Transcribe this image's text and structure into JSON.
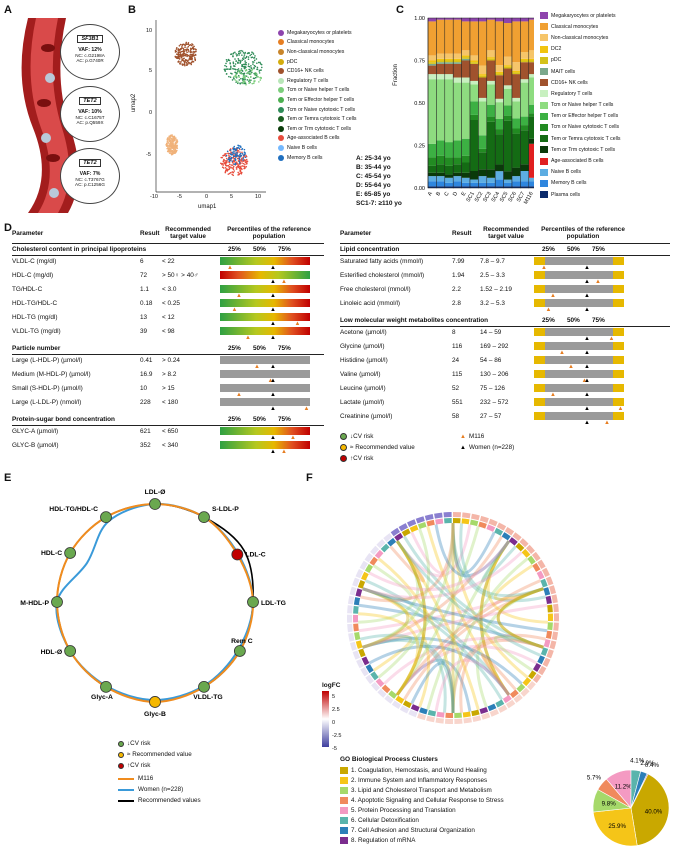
{
  "panels": {
    "A": "A",
    "B": "B",
    "C": "C",
    "D": "D",
    "E": "E",
    "F": "F"
  },
  "panel_a": {
    "variants": [
      {
        "gene": "SF3B1",
        "vaf": "VAF: 12%",
        "nc": "NC: c.G2198A",
        "ac": "AC: p.G740R"
      },
      {
        "gene": "TET2",
        "vaf": "VAF: 10%",
        "nc": "NC: c.C1675T",
        "ac": "AC: p.Q559X"
      },
      {
        "gene": "TET2",
        "vaf": "VAF: 7%",
        "nc": "NC: c.T3767G",
        "ac": "AC: p.C1256G"
      }
    ]
  },
  "panel_b": {
    "xlabel": "umap1",
    "ylabel": "umap2",
    "xticks": [
      "-10",
      "-5",
      "0",
      "5",
      "10"
    ],
    "yticks": [
      "10",
      "5",
      "0",
      "-5"
    ],
    "legend": [
      {
        "label": "Megakaryocytes or platelets",
        "color": "#8e44ad"
      },
      {
        "label": "Classical monocytes",
        "color": "#e67e22"
      },
      {
        "label": "Non-classical monocytes",
        "color": "#c8852a"
      },
      {
        "label": "pDC",
        "color": "#d4ac0d"
      },
      {
        "label": "CD16+ NK cells",
        "color": "#a0522d"
      },
      {
        "label": "Regulatory T cells",
        "color": "#b8e6b8"
      },
      {
        "label": "Tcm or Naive helper T cells",
        "color": "#7ccd7c"
      },
      {
        "label": "Tem or Effector helper T cells",
        "color": "#4caf50"
      },
      {
        "label": "Tcm or Naive cytotoxic T cells",
        "color": "#2e8b57"
      },
      {
        "label": "Tem or Temra cytotoxic T cells",
        "color": "#1b5e20"
      },
      {
        "label": "Tem or Trm cytotoxic T cells",
        "color": "#0b3d0b"
      },
      {
        "label": "Age-associated B cells",
        "color": "#e74c3c"
      },
      {
        "label": "Naive B cells",
        "color": "#74b9ff"
      },
      {
        "label": "Memory B cells",
        "color": "#1f6fbf"
      }
    ]
  },
  "panel_c": {
    "ylabel": "Fraction",
    "yticks": [
      "1.00",
      "0.75",
      "0.50",
      "0.25",
      "0.00"
    ],
    "xlabels": [
      "A",
      "B",
      "C",
      "D",
      "E",
      "SC1",
      "SC2",
      "SC3",
      "SC4",
      "SC5",
      "SC6",
      "SC7",
      "M116"
    ],
    "legend": [
      {
        "label": "Megakaryocytes or platelets",
        "color": "#8e44ad"
      },
      {
        "label": "Classical monocytes",
        "color": "#f0a032"
      },
      {
        "label": "Non-classical monocytes",
        "color": "#f6c56a"
      },
      {
        "label": "DC2",
        "color": "#f1c40f"
      },
      {
        "label": "pDC",
        "color": "#d4c21a"
      },
      {
        "label": "MAIT cells",
        "color": "#7aa88c"
      },
      {
        "label": "CD16+ NK cells",
        "color": "#a0522d"
      },
      {
        "label": "Regulatory T cells",
        "color": "#c8f0c0"
      },
      {
        "label": "Tcm or Naive helper T cells",
        "color": "#8edc80"
      },
      {
        "label": "Tem or Effector helper T cells",
        "color": "#3cb043"
      },
      {
        "label": "Tcm or Naive cytotoxic T cells",
        "color": "#228b22"
      },
      {
        "label": "Tem or Temra cytotoxic T cells",
        "color": "#146b14"
      },
      {
        "label": "Tem or Trm cytotoxic T cells",
        "color": "#0a3a0a"
      },
      {
        "label": "Age-associated B cells",
        "color": "#e02020"
      },
      {
        "label": "Naive B cells",
        "color": "#5dade2"
      },
      {
        "label": "Memory B cells",
        "color": "#2e86de"
      },
      {
        "label": "Plasma cells",
        "color": "#0b2a6b"
      }
    ],
    "ages": [
      "A: 25-34 yo",
      "B: 35-44 yo",
      "C: 45-54 yo",
      "D: 55-64 yo",
      "E: 65-85 yo",
      "SC1-7: ≥110 yo"
    ]
  },
  "chart_data": {
    "type": "bar",
    "ylabel": "Fraction",
    "ylim": [
      0,
      1
    ],
    "categories": [
      "A",
      "B",
      "C",
      "D",
      "E",
      "SC1",
      "SC2",
      "SC3",
      "SC4",
      "SC5",
      "SC6",
      "SC7",
      "M116"
    ],
    "series": [
      {
        "name": "Plasma cells",
        "values": [
          0.01,
          0.01,
          0.01,
          0.01,
          0.01,
          0.01,
          0.01,
          0.01,
          0.01,
          0.01,
          0.01,
          0.01,
          0.01
        ]
      },
      {
        "name": "Memory B cells",
        "values": [
          0.03,
          0.03,
          0.02,
          0.03,
          0.02,
          0.02,
          0.02,
          0.02,
          0.04,
          0.02,
          0.03,
          0.03,
          0.03
        ]
      },
      {
        "name": "Naive B cells",
        "values": [
          0.03,
          0.03,
          0.03,
          0.03,
          0.03,
          0.02,
          0.04,
          0.03,
          0.05,
          0.02,
          0.03,
          0.06,
          0.02
        ]
      },
      {
        "name": "Age-associated B cells",
        "values": [
          0,
          0,
          0,
          0,
          0,
          0,
          0,
          0,
          0,
          0,
          0,
          0,
          0.2
        ]
      },
      {
        "name": "Tem or Trm cytotoxic T cells",
        "values": [
          0.02,
          0.02,
          0.02,
          0.02,
          0.03,
          0.05,
          0.04,
          0.05,
          0.04,
          0.05,
          0.05,
          0.04,
          0.03
        ]
      },
      {
        "name": "Tem or Temra cytotoxic T cells",
        "values": [
          0.04,
          0.05,
          0.05,
          0.05,
          0.06,
          0.3,
          0.1,
          0.28,
          0.18,
          0.3,
          0.2,
          0.2,
          0.13
        ]
      },
      {
        "name": "Tcm or Naive cytotoxic T cells",
        "values": [
          0.05,
          0.05,
          0.05,
          0.04,
          0.04,
          0.03,
          0.02,
          0.03,
          0.03,
          0.03,
          0.03,
          0.03,
          0.02
        ]
      },
      {
        "name": "Tem or Effector helper T cells",
        "values": [
          0.08,
          0.09,
          0.09,
          0.1,
          0.1,
          0.08,
          0.08,
          0.07,
          0.06,
          0.06,
          0.06,
          0.05,
          0.05
        ]
      },
      {
        "name": "Tcm or Naive helper T cells",
        "values": [
          0.38,
          0.36,
          0.37,
          0.34,
          0.33,
          0.1,
          0.2,
          0.12,
          0.1,
          0.1,
          0.1,
          0.2,
          0.16
        ]
      },
      {
        "name": "Regulatory T cells",
        "values": [
          0.03,
          0.03,
          0.03,
          0.03,
          0.03,
          0.02,
          0.02,
          0.02,
          0.02,
          0.02,
          0.02,
          0.02,
          0.02
        ]
      },
      {
        "name": "CD16+ NK cells",
        "values": [
          0.05,
          0.06,
          0.06,
          0.08,
          0.1,
          0.1,
          0.12,
          0.12,
          0.14,
          0.1,
          0.14,
          0.1,
          0.07
        ]
      },
      {
        "name": "MAIT cells",
        "values": [
          0.01,
          0.01,
          0.01,
          0.01,
          0.01,
          0,
          0,
          0,
          0,
          0,
          0,
          0,
          0
        ]
      },
      {
        "name": "pDC",
        "values": [
          0.01,
          0.01,
          0.01,
          0.01,
          0.01,
          0.01,
          0.01,
          0.01,
          0.01,
          0.01,
          0.01,
          0.01,
          0.01
        ]
      },
      {
        "name": "DC2",
        "values": [
          0.01,
          0.01,
          0.01,
          0.01,
          0.01,
          0.01,
          0.01,
          0.01,
          0.01,
          0.01,
          0.01,
          0.01,
          0.01
        ]
      },
      {
        "name": "Non-classical monocytes",
        "values": [
          0.03,
          0.03,
          0.03,
          0.03,
          0.03,
          0.03,
          0.05,
          0.04,
          0.04,
          0.05,
          0.05,
          0.04,
          0.05
        ]
      },
      {
        "name": "Classical monocytes",
        "values": [
          0.2,
          0.2,
          0.2,
          0.2,
          0.17,
          0.2,
          0.26,
          0.18,
          0.26,
          0.2,
          0.24,
          0.18,
          0.18
        ]
      },
      {
        "name": "Megakaryocytes or platelets",
        "values": [
          0.02,
          0.01,
          0.01,
          0.01,
          0.02,
          0.02,
          0.02,
          0.01,
          0.02,
          0.03,
          0.02,
          0.02,
          0.01
        ]
      }
    ]
  },
  "panel_d": {
    "left_header": {
      "param": "Parameter",
      "result": "Result",
      "target": "Recommended target value",
      "pct": "Percentiles of the reference population"
    },
    "right_header": {
      "param": "Parameter",
      "result": "Result",
      "target": "Recommended target value",
      "pct": "Percentiles of the reference population"
    },
    "pcts": [
      "25%",
      "50%",
      "75%"
    ],
    "sections": {
      "chol": "Cholesterol content in principal lipoproteins",
      "particle": "Particle number",
      "glyc": "Protein-sugar bond concentration",
      "lipid": "Lipid concentration",
      "lmw": "Low molecular weight metabolites concentration"
    },
    "left_rows": [
      {
        "p": "VLDL-C (mg/dl)",
        "r": "6",
        "t": "< 22"
      },
      {
        "p": "HDL-C (mg/dl)",
        "r": "72",
        "t": "> 50♀ > 40♂"
      },
      {
        "p": "TG/HDL-C",
        "r": "1.1",
        "t": "< 3.0"
      },
      {
        "p": "HDL-TG/HDL-C",
        "r": "0.18",
        "t": "< 0.25"
      },
      {
        "p": "HDL-TG (mg/dl)",
        "r": "13",
        "t": "< 12"
      },
      {
        "p": "VLDL-TG (mg/dl)",
        "r": "39",
        "t": "< 98"
      },
      {
        "p": "Large (L-HDL-P) (µmol/l)",
        "r": "0.41",
        "t": "> 0.24"
      },
      {
        "p": "Medium (M-HDL-P) (µmol/l)",
        "r": "16.9",
        "t": "> 8.2"
      },
      {
        "p": "Small (S-HDL-P) (µmol/l)",
        "r": "10",
        "t": "> 15"
      },
      {
        "p": "Large (L-LDL-P) (nmol/l)",
        "r": "228",
        "t": "< 180"
      },
      {
        "p": "GLYC-A (µmol/l)",
        "r": "621",
        "t": "< 650"
      },
      {
        "p": "GLYC-B (µmol/l)",
        "r": "352",
        "t": "< 340"
      }
    ],
    "right_rows": [
      {
        "p": "Saturated fatty acids (mmol/l)",
        "r": "7.99",
        "t": "7.8 – 9.7"
      },
      {
        "p": "Esterified cholesterol (mmol/l)",
        "r": "1.94",
        "t": "2.5 – 3.3"
      },
      {
        "p": "Free cholesterol (mmol/l)",
        "r": "2.2",
        "t": "1.52 – 2.19"
      },
      {
        "p": "Linoleic acid (mmol/l)",
        "r": "2.8",
        "t": "3.2 – 5.3"
      },
      {
        "p": "Acetone (µmol/l)",
        "r": "8",
        "t": "14 – 59"
      },
      {
        "p": "Glycine (µmol/l)",
        "r": "116",
        "t": "169 – 292"
      },
      {
        "p": "Histidine (µmol/l)",
        "r": "24",
        "t": "54 – 86"
      },
      {
        "p": "Valine (µmol/l)",
        "r": "115",
        "t": "130 – 206"
      },
      {
        "p": "Leucine (µmol/l)",
        "r": "52",
        "t": "75 – 126"
      },
      {
        "p": "Lactate (µmol/l)",
        "r": "551",
        "t": "232 – 572"
      },
      {
        "p": "Creatinine (µmol/l)",
        "r": "58",
        "t": "27 – 57"
      }
    ],
    "legend": {
      "cv_down": "↓CV risk",
      "rec": "≈ Recommended value",
      "cv_up": "↑CV risk",
      "m116": "M116",
      "women": "Women (n=228)"
    }
  },
  "panel_e": {
    "nodes": [
      "LDL-Ø",
      "S-LDL-P",
      "LDL-C",
      "LDL-TG",
      "Rem C",
      "VLDL-TG",
      "Glyc-B",
      "Glyc-A",
      "HDL-Ø",
      "M-HDL-P",
      "HDL-C",
      "HDL-TG/HDL-C"
    ],
    "legend": {
      "cv_down": "↓CV risk",
      "rec": "≈ Recommended value",
      "cv_up": "↑CV risk",
      "m116": "M116",
      "women": "Women (n=228)",
      "recv": "Recommended values"
    }
  },
  "panel_f": {
    "logfc_title": "logFC",
    "logfc_ticks": [
      "5",
      "2.5",
      "0",
      "-2.5",
      "-5"
    ],
    "go_title": "GO Biological Process Clusters",
    "go": [
      {
        "label": "1. Coagulation, Hemostasis, and Wound Healing",
        "color": "#c9a800",
        "pct": "40.0%"
      },
      {
        "label": "2. Immune System and Inflammatory Responses",
        "color": "#f5c518",
        "pct": "25.9%"
      },
      {
        "label": "3. Lipid and Cholesterol Transport and Metabolism",
        "color": "#a6d96a",
        "pct": "9.8%"
      },
      {
        "label": "4. Apoptotic Signaling and Cellular Response to Stress",
        "color": "#f08a5d",
        "pct": "5.7%"
      },
      {
        "label": "5. Protein Processing and Translation",
        "color": "#f49ac2",
        "pct": "11.2%"
      },
      {
        "label": "6. Cellular Detoxification",
        "color": "#5ab4ac",
        "pct": "4.1%"
      },
      {
        "label": "7. Cell Adhesion and Structural Organization",
        "color": "#2c7fb8",
        "pct": "2.9%"
      },
      {
        "label": "8. Regulation of mRNA",
        "color": "#7b2d8e",
        "pct": "0.4%"
      }
    ]
  }
}
